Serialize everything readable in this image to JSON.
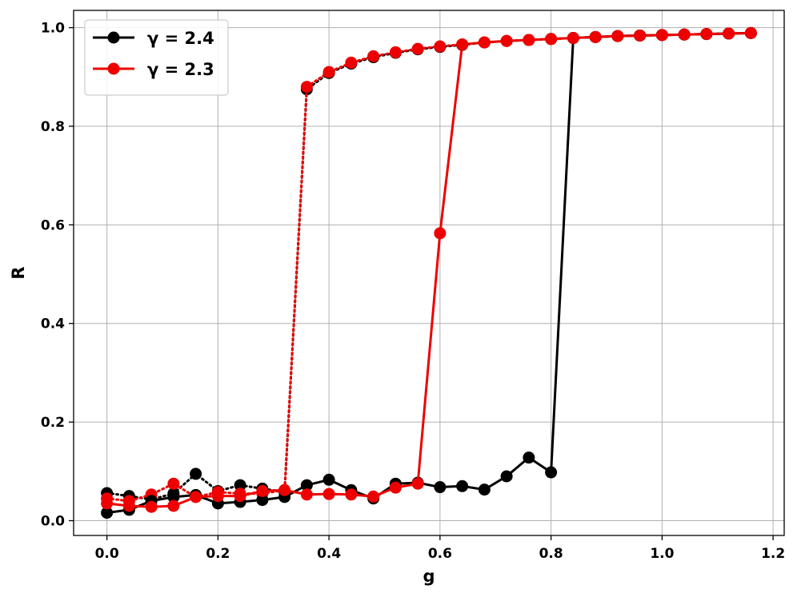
{
  "chart_data": {
    "type": "line",
    "xlabel": "g",
    "ylabel": "R",
    "xlim": [
      -0.06,
      1.22
    ],
    "ylim": [
      -0.03,
      1.035
    ],
    "xticks": [
      0.0,
      0.2,
      0.4,
      0.6,
      0.8,
      1.0,
      1.2
    ],
    "yticks": [
      0.0,
      0.2,
      0.4,
      0.6,
      0.8,
      1.0
    ],
    "xtick_labels": [
      "0.0",
      "0.2",
      "0.4",
      "0.6",
      "0.8",
      "1.0",
      "1.2"
    ],
    "ytick_labels": [
      "0.0",
      "0.2",
      "0.4",
      "0.6",
      "0.8",
      "1.0"
    ],
    "grid": true,
    "legend_position": "top-left",
    "series": [
      {
        "name": "γ = 2.4",
        "color": "#000000",
        "line_style": "solid",
        "marker": "circle",
        "x": [
          0.0,
          0.04,
          0.08,
          0.12,
          0.16,
          0.2,
          0.24,
          0.28,
          0.32,
          0.36,
          0.4,
          0.44,
          0.48,
          0.52,
          0.56,
          0.6,
          0.64,
          0.68,
          0.72,
          0.76,
          0.8,
          0.84,
          0.88,
          0.92,
          0.96,
          1.0,
          1.04,
          1.08,
          1.12,
          1.16
        ],
        "y": [
          0.016,
          0.022,
          0.04,
          0.048,
          0.052,
          0.035,
          0.038,
          0.042,
          0.048,
          0.072,
          0.083,
          0.062,
          0.045,
          0.075,
          0.077,
          0.068,
          0.07,
          0.063,
          0.09,
          0.128,
          0.098,
          0.979,
          0.981,
          0.983,
          0.984,
          0.985,
          0.986,
          0.987,
          0.988,
          0.989
        ]
      },
      {
        "name": "γ = 2.3",
        "color": "#ee0000",
        "line_style": "solid",
        "marker": "circle",
        "x": [
          0.0,
          0.04,
          0.08,
          0.12,
          0.16,
          0.2,
          0.24,
          0.28,
          0.32,
          0.36,
          0.4,
          0.44,
          0.48,
          0.52,
          0.56,
          0.6,
          0.64,
          0.68,
          0.72,
          0.76,
          0.8,
          0.84,
          0.88,
          0.92,
          0.96,
          1.0,
          1.04,
          1.08,
          1.12,
          1.16
        ],
        "y": [
          0.035,
          0.03,
          0.028,
          0.03,
          0.048,
          0.05,
          0.05,
          0.06,
          0.062,
          0.053,
          0.054,
          0.053,
          0.049,
          0.067,
          0.075,
          0.583,
          0.966,
          0.97,
          0.973,
          0.975,
          0.977,
          0.979,
          0.981,
          0.983,
          0.984,
          0.985,
          0.986,
          0.987,
          0.988,
          0.989
        ]
      },
      {
        "color": "#000000",
        "line_style": "dotted",
        "marker": "circle",
        "x": [
          0.0,
          0.04,
          0.08,
          0.12,
          0.16,
          0.2,
          0.24,
          0.28,
          0.32,
          0.36,
          0.4,
          0.44,
          0.48,
          0.52,
          0.56,
          0.6,
          0.64,
          0.68,
          0.72,
          0.76,
          0.8,
          0.84,
          0.88,
          0.92,
          0.96,
          1.0,
          1.04,
          1.08,
          1.12,
          1.16
        ],
        "y": [
          0.056,
          0.05,
          0.043,
          0.055,
          0.095,
          0.06,
          0.072,
          0.065,
          0.058,
          0.875,
          0.908,
          0.927,
          0.94,
          0.949,
          0.956,
          0.961,
          0.965,
          0.97,
          0.973,
          0.975,
          0.977,
          0.979,
          0.981,
          0.983,
          0.984,
          0.985,
          0.986,
          0.987,
          0.988,
          0.989
        ]
      },
      {
        "color": "#ee0000",
        "line_style": "dotted",
        "marker": "circle",
        "x": [
          0.0,
          0.04,
          0.08,
          0.12,
          0.16,
          0.2,
          0.24,
          0.28,
          0.32,
          0.36,
          0.4,
          0.44,
          0.48,
          0.52,
          0.56,
          0.6,
          0.64,
          0.68,
          0.72,
          0.76,
          0.8,
          0.84,
          0.88,
          0.92,
          0.96,
          1.0,
          1.04,
          1.08,
          1.12,
          1.16
        ],
        "y": [
          0.045,
          0.04,
          0.053,
          0.075,
          0.048,
          0.058,
          0.055,
          0.055,
          0.062,
          0.88,
          0.91,
          0.929,
          0.942,
          0.95,
          0.957,
          0.962,
          0.966,
          0.97,
          0.973,
          0.975,
          0.977,
          0.979,
          0.981,
          0.983,
          0.984,
          0.985,
          0.986,
          0.987,
          0.988,
          0.989
        ]
      }
    ]
  }
}
